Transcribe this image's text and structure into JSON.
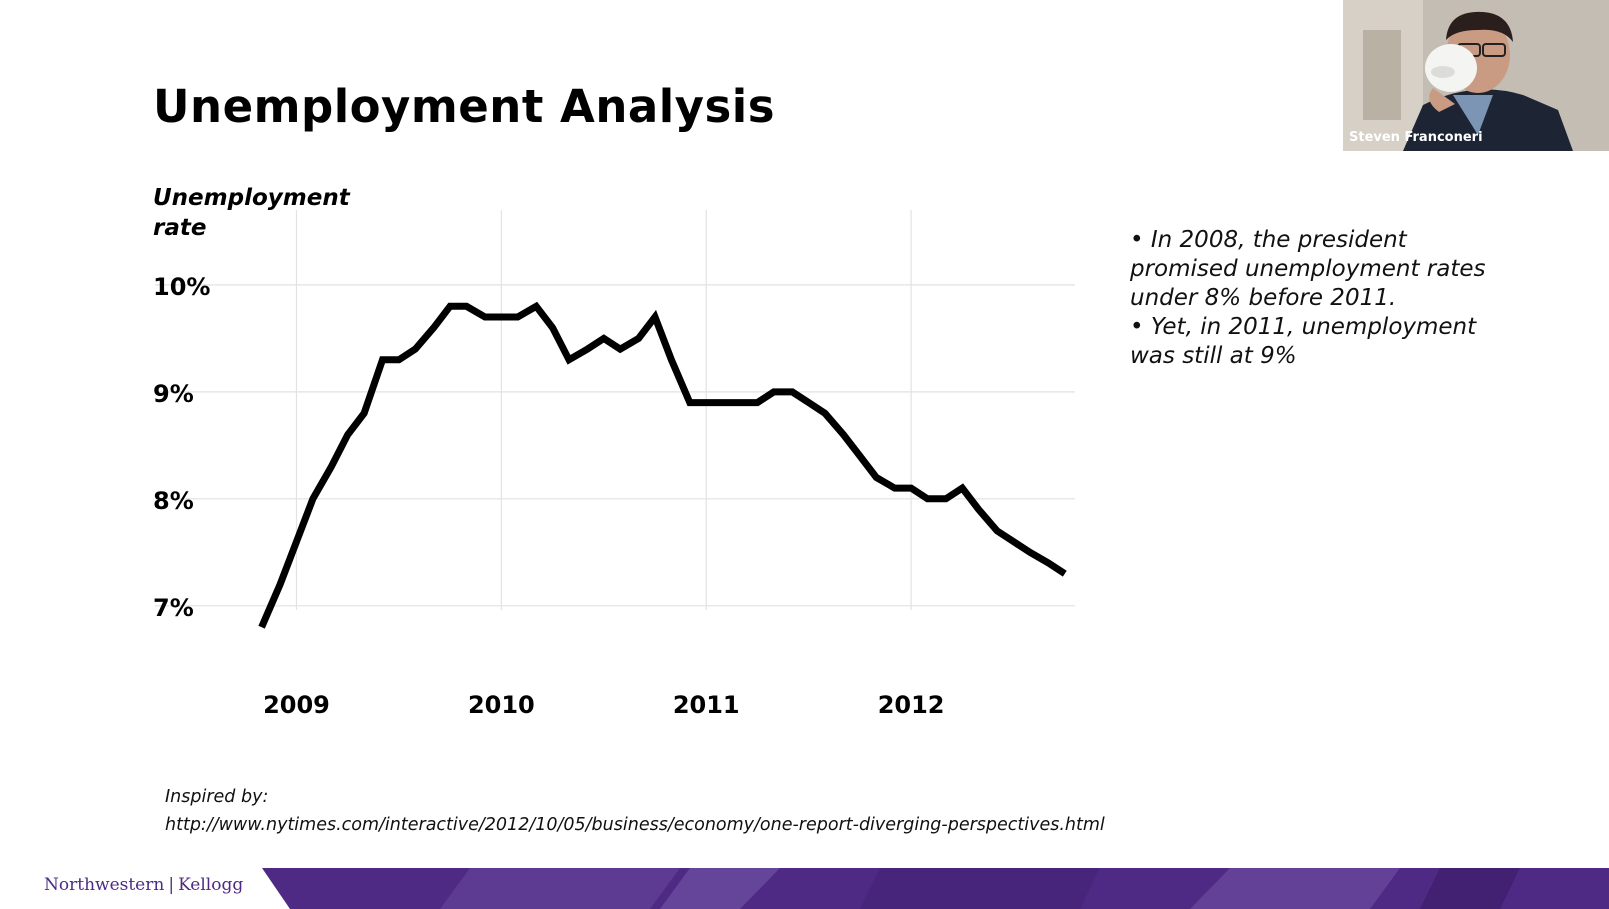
{
  "slide": {
    "title": "Unemployment Analysis",
    "notes": [
      "• In 2008, the president",
      "promised unemployment rates",
      "under 8% before 2011.",
      "• Yet, in 2011, unemployment",
      "was still at 9%"
    ],
    "source_label": "Inspired by:",
    "source_url": "http://www.nytimes.com/interactive/2012/10/05/business/economy/one-report-diverging-perspectives.html",
    "logo_left": "Northwestern",
    "logo_sep": "|",
    "logo_right": "Kellogg",
    "brand_color": "#4e2a84"
  },
  "webcam": {
    "participant_name": "Steven Franconeri"
  },
  "chart_data": {
    "type": "line",
    "title": "",
    "ylabel": "Unemployment rate",
    "xlabel": "",
    "yticks": [
      "7%",
      "8%",
      "9%",
      "10%"
    ],
    "ytick_values": [
      7,
      8,
      9,
      10
    ],
    "xticks": [
      "2009",
      "2010",
      "2011",
      "2012"
    ],
    "xtick_values": [
      2009.0,
      2010.0,
      2011.0,
      2012.0
    ],
    "xlim": [
      2008.7,
      2012.8
    ],
    "ylim": [
      6.4,
      10.7
    ],
    "grid": true,
    "line_color": "#000000",
    "x": [
      2008.83,
      2008.92,
      2009.0,
      2009.08,
      2009.17,
      2009.25,
      2009.33,
      2009.42,
      2009.5,
      2009.58,
      2009.67,
      2009.75,
      2009.83,
      2009.92,
      2010.0,
      2010.08,
      2010.17,
      2010.25,
      2010.33,
      2010.42,
      2010.5,
      2010.58,
      2010.67,
      2010.75,
      2010.83,
      2010.92,
      2011.0,
      2011.08,
      2011.17,
      2011.25,
      2011.33,
      2011.42,
      2011.5,
      2011.58,
      2011.67,
      2011.75,
      2011.83,
      2011.92,
      2012.0,
      2012.08,
      2012.17,
      2012.25,
      2012.33,
      2012.42,
      2012.5,
      2012.58,
      2012.67,
      2012.75
    ],
    "y": [
      6.8,
      7.2,
      7.6,
      8.0,
      8.3,
      8.6,
      8.8,
      9.3,
      9.3,
      9.4,
      9.6,
      9.8,
      9.8,
      9.7,
      9.7,
      9.7,
      9.8,
      9.6,
      9.3,
      9.4,
      9.5,
      9.4,
      9.5,
      9.7,
      9.3,
      8.9,
      8.9,
      8.9,
      8.9,
      8.9,
      9.0,
      9.0,
      8.9,
      8.8,
      8.6,
      8.4,
      8.2,
      8.1,
      8.1,
      8.0,
      8.0,
      8.1,
      7.9,
      7.7,
      7.6,
      7.5,
      7.4,
      7.3
    ]
  }
}
